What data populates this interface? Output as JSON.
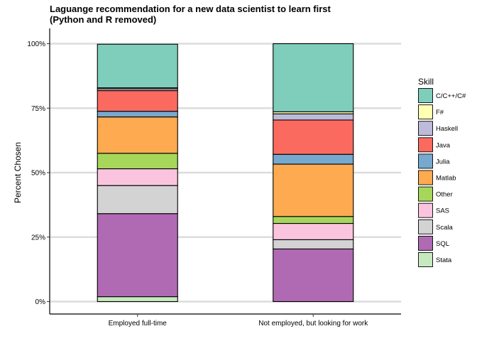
{
  "chart_data": {
    "type": "bar",
    "stacked": true,
    "title_line1": "Laguange recommendation for a new data scientist to learn first",
    "title_line2": "(Python and R removed)",
    "xlabel": "",
    "ylabel": "Percent Chosen",
    "ylim": [
      0,
      100
    ],
    "y_ticks": [
      0,
      25,
      50,
      75,
      100
    ],
    "y_tick_labels": [
      "0%",
      "25%",
      "50%",
      "75%",
      "100%"
    ],
    "grid": "horizontal major",
    "categories": [
      "Employed full-time",
      "Not employed, but looking for work"
    ],
    "legend_title": "Skill",
    "legend_position": "right",
    "series": [
      {
        "name": "C/C++/C#",
        "color": "#7fcdbb",
        "values": [
          16.9,
          26.4
        ]
      },
      {
        "name": "F#",
        "color": "#ffffb3",
        "values": [
          0.4,
          0.8
        ]
      },
      {
        "name": "Haskell",
        "color": "#bebada",
        "values": [
          0.7,
          2.4
        ]
      },
      {
        "name": "Java",
        "color": "#fb6a5f",
        "values": [
          8.0,
          13.3
        ]
      },
      {
        "name": "Julia",
        "color": "#77a9cf",
        "values": [
          2.2,
          3.8
        ]
      },
      {
        "name": "Matlab",
        "color": "#fdaa50",
        "values": [
          14.1,
          20.3
        ]
      },
      {
        "name": "Other",
        "color": "#a6d75b",
        "values": [
          6.0,
          2.7
        ]
      },
      {
        "name": "SAS",
        "color": "#fbc4de",
        "values": [
          6.5,
          6.3
        ]
      },
      {
        "name": "Scala",
        "color": "#d3d3d3",
        "values": [
          10.9,
          3.6
        ]
      },
      {
        "name": "SQL",
        "color": "#b06ab3",
        "values": [
          32.2,
          20.4
        ]
      },
      {
        "name": "Stata",
        "color": "#c7e9c0",
        "values": [
          1.9,
          0.0
        ]
      }
    ]
  }
}
